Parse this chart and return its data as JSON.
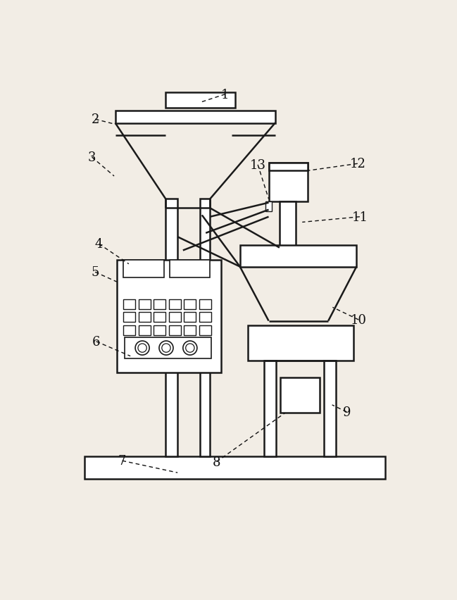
{
  "bg_color": "#f2ede5",
  "line_color": "#1a1a1a",
  "line_width": 1.8,
  "label_info": [
    [
      1,
      308,
      42,
      262,
      57
    ],
    [
      2,
      68,
      88,
      103,
      97
    ],
    [
      3,
      62,
      158,
      103,
      193
    ],
    [
      4,
      75,
      318,
      130,
      355
    ],
    [
      5,
      68,
      370,
      108,
      388
    ],
    [
      6,
      70,
      498,
      133,
      525
    ],
    [
      7,
      118,
      718,
      220,
      740
    ],
    [
      8,
      292,
      720,
      418,
      630
    ],
    [
      9,
      532,
      628,
      505,
      615
    ],
    [
      10,
      554,
      458,
      506,
      435
    ],
    [
      11,
      556,
      268,
      450,
      278
    ],
    [
      12,
      552,
      170,
      460,
      183
    ],
    [
      13,
      368,
      172,
      388,
      235
    ]
  ]
}
